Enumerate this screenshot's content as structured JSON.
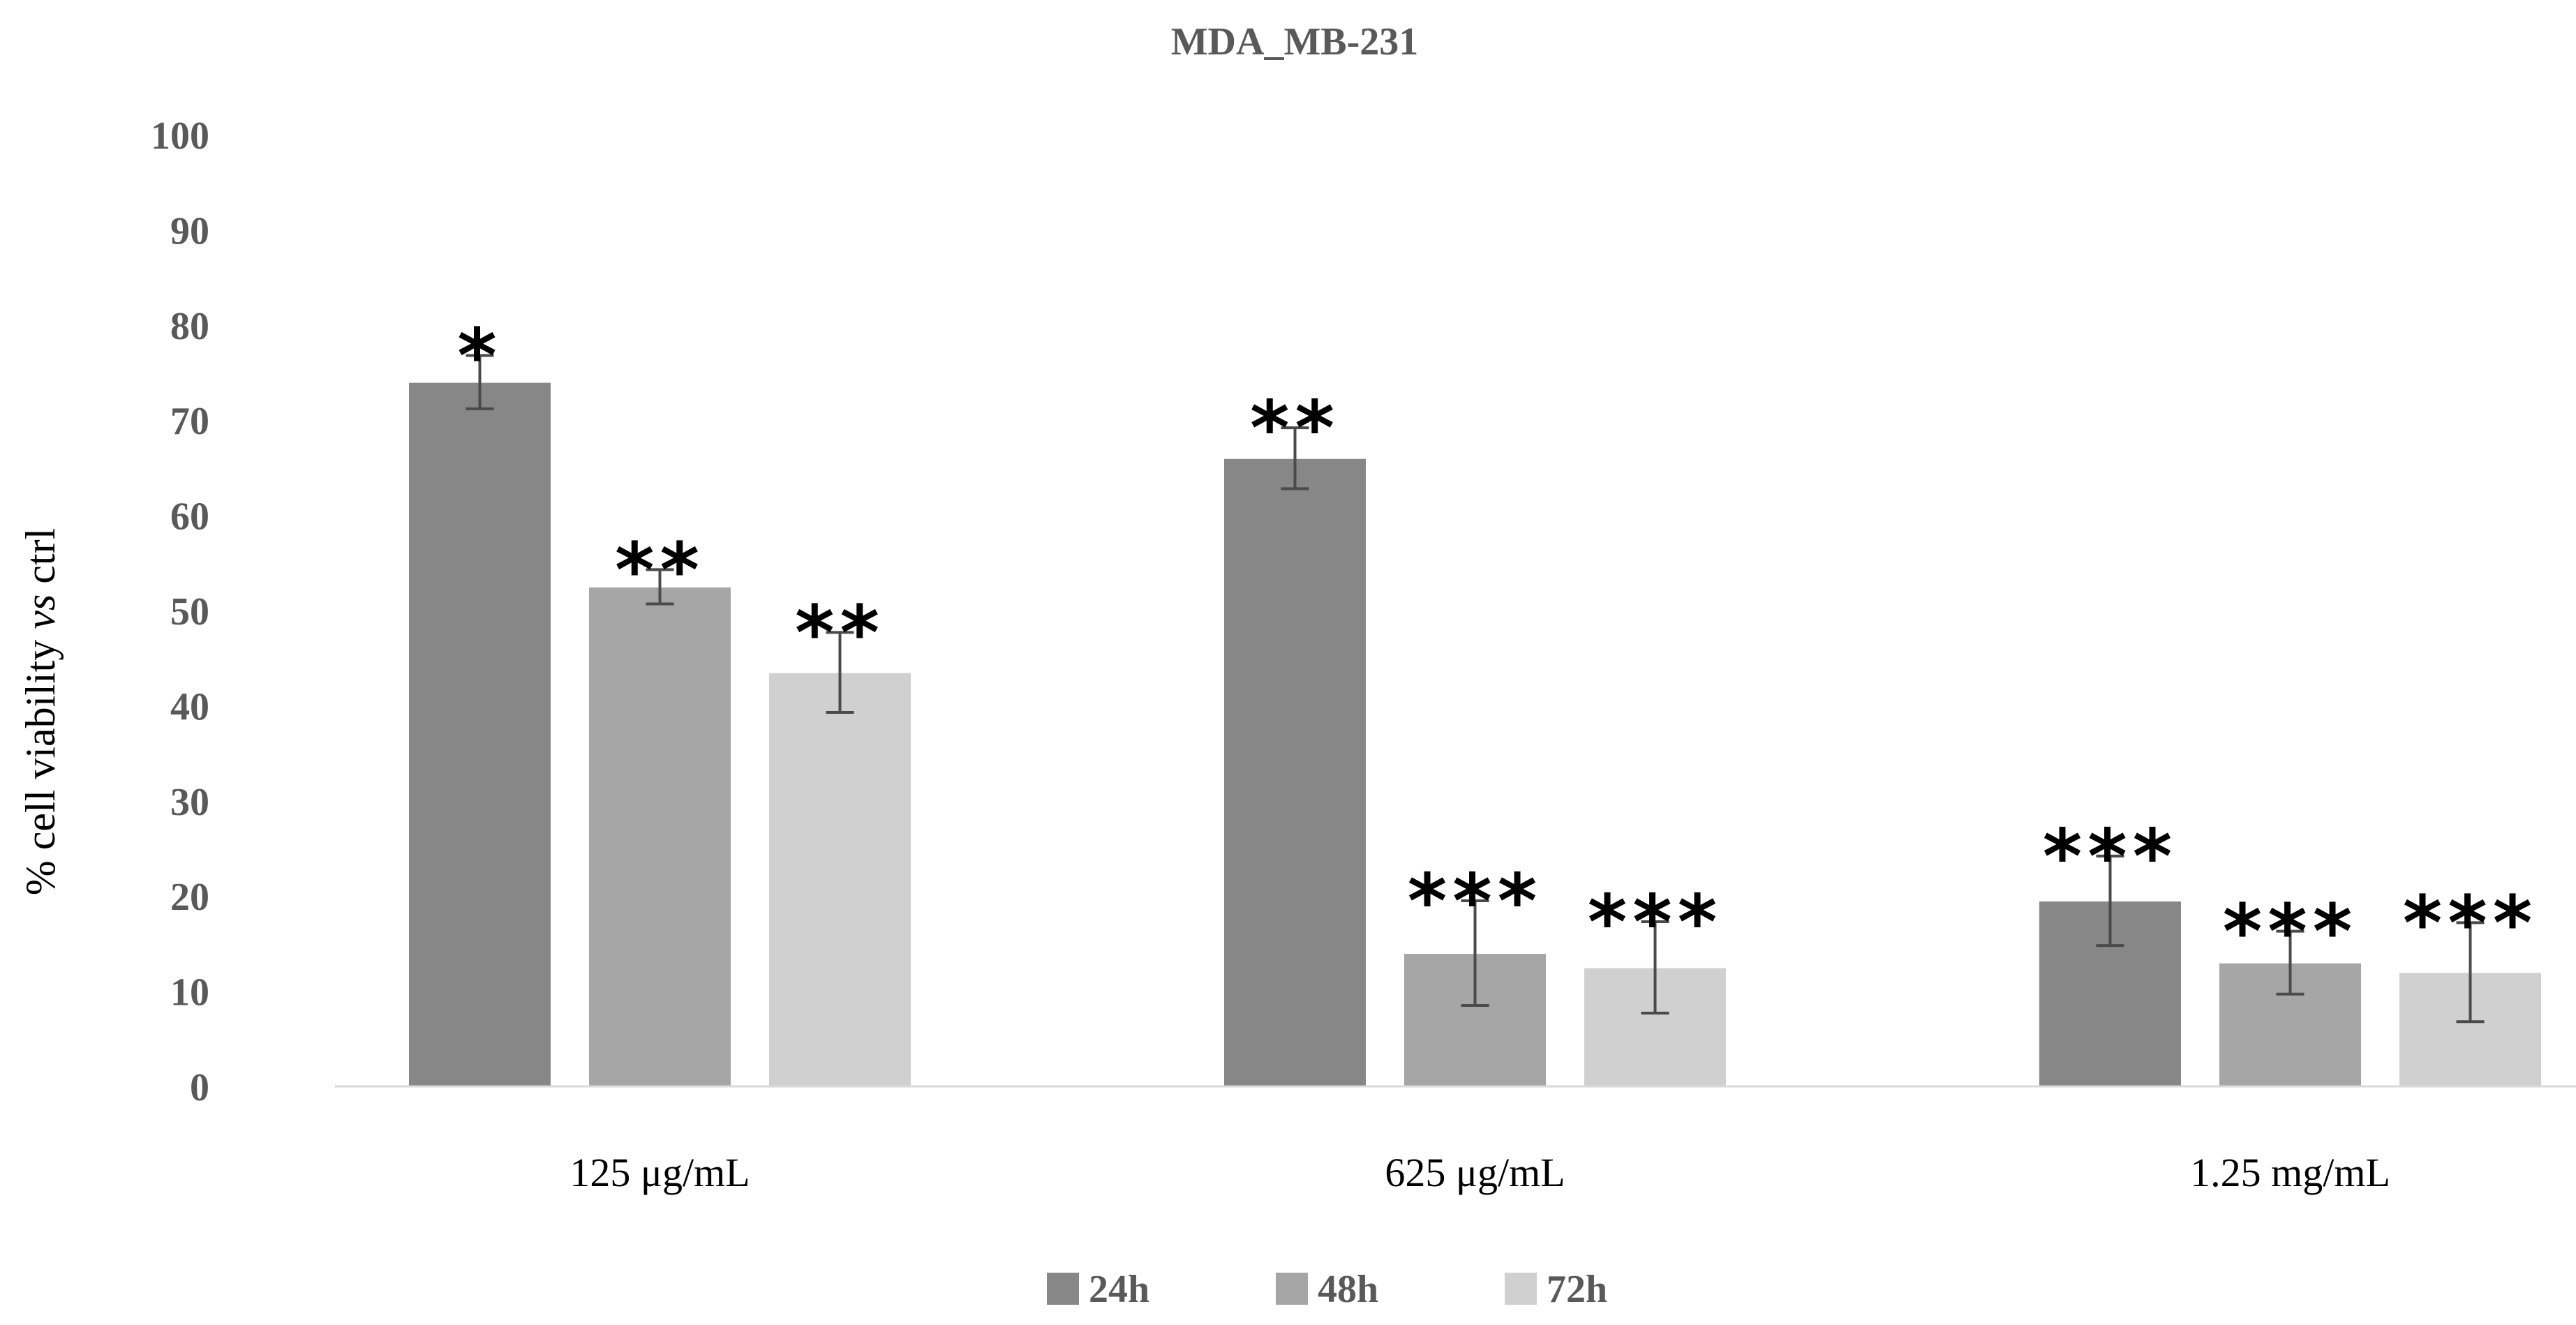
{
  "chart_data": {
    "type": "bar",
    "title": "MDA_MB-231",
    "xlabel": "",
    "ylabel_prefix": "% cell viability ",
    "ylabel_italic": "vs",
    "ylabel_suffix": " ctrl",
    "ylim": [
      0,
      100
    ],
    "yticks": [
      "0",
      "10",
      "20",
      "30",
      "40",
      "50",
      "60",
      "70",
      "80",
      "90",
      "100"
    ],
    "grid": false,
    "legend_position": "bottom-center",
    "categories": [
      "125 μg/mL",
      "625 μg/mL",
      "1.25 mg/mL"
    ],
    "series": [
      {
        "name": "24h",
        "color": "#878787",
        "values": [
          74,
          66,
          19.5
        ],
        "errors": [
          2.8,
          3.2,
          4.7
        ],
        "significance": [
          "*",
          "**",
          "***"
        ]
      },
      {
        "name": "48h",
        "color": "#a6a6a6",
        "values": [
          52.5,
          14,
          13
        ],
        "errors": [
          1.8,
          5.5,
          3.3
        ],
        "significance": [
          "**",
          "***",
          "***"
        ]
      },
      {
        "name": "72h",
        "color": "#d0d0d0",
        "values": [
          43.5,
          12.5,
          12
        ],
        "errors": [
          4.2,
          4.8,
          5.2
        ],
        "significance": [
          "**",
          "***",
          "***"
        ]
      }
    ]
  }
}
